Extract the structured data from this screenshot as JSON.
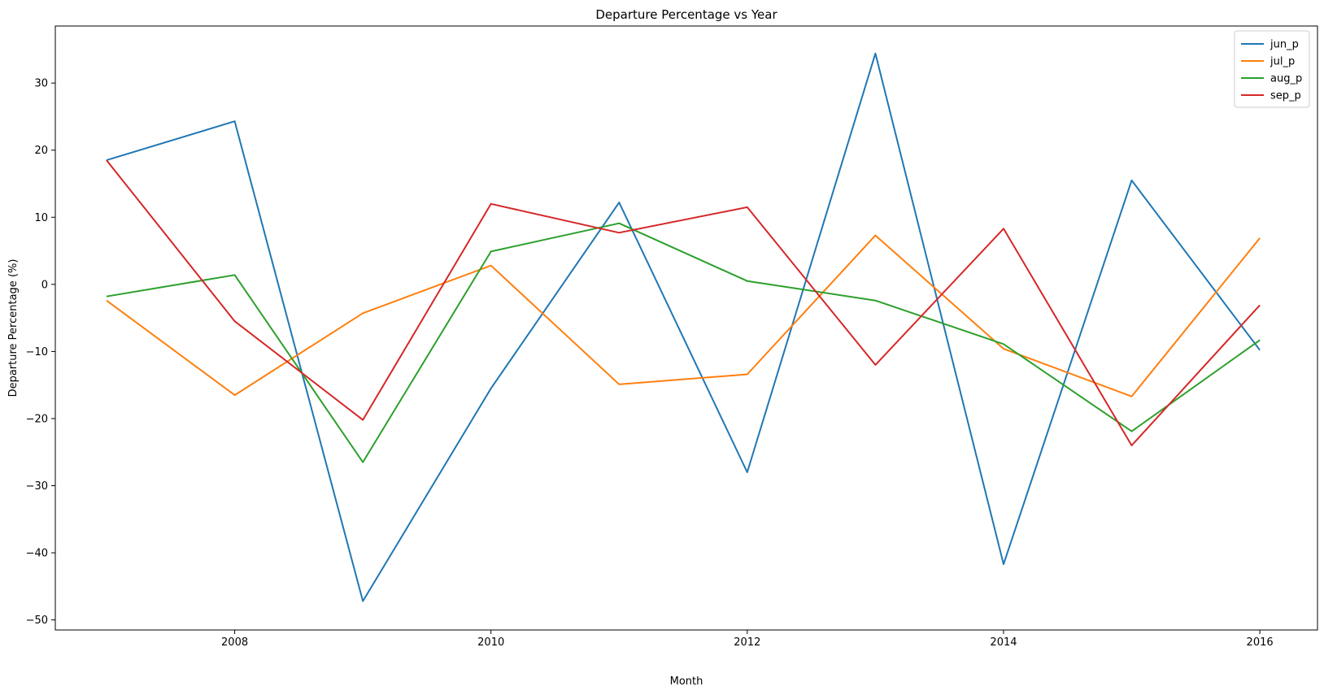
{
  "chart_data": {
    "type": "line",
    "title": "Departure Percentage vs Year",
    "xlabel": "Month",
    "ylabel": "Departure Percentage (%)",
    "x": [
      2007,
      2008,
      2009,
      2010,
      2011,
      2012,
      2013,
      2014,
      2015,
      2016
    ],
    "xlim": [
      2006.6,
      2016.45
    ],
    "ylim": [
      -51.5,
      38.5
    ],
    "xticks": [
      2008,
      2010,
      2012,
      2014,
      2016
    ],
    "yticks": [
      -50,
      -40,
      -30,
      -20,
      -10,
      0,
      10,
      20,
      30
    ],
    "ytick_labels": [
      "−50",
      "−40",
      "−30",
      "−20",
      "−10",
      "0",
      "10",
      "20",
      "30"
    ],
    "grid": false,
    "legend_position": "top-right",
    "series": [
      {
        "name": "jun_p",
        "color": "#1f77b4",
        "values": [
          18.5,
          24.3,
          -47.2,
          -15.5,
          12.2,
          -28.0,
          34.4,
          -41.7,
          15.5,
          -9.8
        ]
      },
      {
        "name": "jul_p",
        "color": "#ff7f0e",
        "values": [
          -2.4,
          -16.5,
          -4.3,
          2.8,
          -14.9,
          -13.4,
          7.3,
          -9.6,
          -16.7,
          6.9
        ]
      },
      {
        "name": "aug_p",
        "color": "#2ca02c",
        "values": [
          -1.8,
          1.4,
          -26.5,
          4.9,
          9.1,
          0.5,
          -2.4,
          -8.9,
          -21.9,
          -8.3
        ]
      },
      {
        "name": "sep_p",
        "color": "#d62728",
        "values": [
          18.5,
          -5.5,
          -20.2,
          12.0,
          7.7,
          11.5,
          -12.0,
          8.3,
          -24.0,
          -3.1
        ]
      }
    ]
  }
}
